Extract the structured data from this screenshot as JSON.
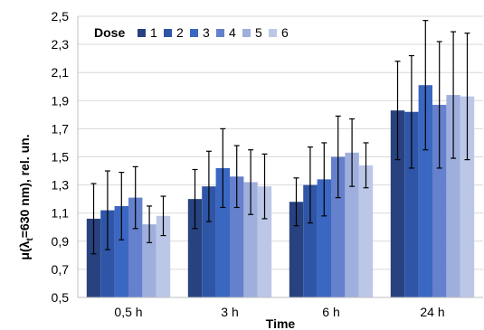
{
  "chart_data": {
    "type": "bar",
    "xlabel": "Time",
    "ylabel": "μ(λ",
    "ylabel_sub": "t",
    "ylabel_rest": "=630 nm), rel. un.",
    "ylim": [
      0.5,
      2.5
    ],
    "yticks": [
      "0,5",
      "0,7",
      "0,9",
      "1,1",
      "1,3",
      "1,5",
      "1,7",
      "1,9",
      "2,1",
      "2,3",
      "2,5"
    ],
    "ytick_values": [
      0.5,
      0.7,
      0.9,
      1.1,
      1.3,
      1.5,
      1.7,
      1.9,
      2.1,
      2.3,
      2.5
    ],
    "grid": true,
    "legend": {
      "title": "Dose",
      "placement": "top-left"
    },
    "categories": [
      "0,5 h",
      "3 h",
      "6 h",
      "24 h"
    ],
    "series": [
      {
        "name": "1",
        "color": "#27427f",
        "values": [
          1.06,
          1.2,
          1.18,
          1.83
        ],
        "err": [
          0.25,
          0.21,
          0.17,
          0.35
        ]
      },
      {
        "name": "2",
        "color": "#2f55a6",
        "values": [
          1.12,
          1.29,
          1.3,
          1.82
        ],
        "err": [
          0.28,
          0.25,
          0.27,
          0.4
        ]
      },
      {
        "name": "3",
        "color": "#3a67c2",
        "values": [
          1.15,
          1.42,
          1.34,
          2.01
        ],
        "err": [
          0.24,
          0.28,
          0.26,
          0.46
        ]
      },
      {
        "name": "4",
        "color": "#6580cc",
        "values": [
          1.21,
          1.36,
          1.5,
          1.87
        ],
        "err": [
          0.22,
          0.22,
          0.29,
          0.45
        ]
      },
      {
        "name": "5",
        "color": "#9fafdd",
        "values": [
          1.02,
          1.32,
          1.53,
          1.94
        ],
        "err": [
          0.13,
          0.23,
          0.24,
          0.45
        ]
      },
      {
        "name": "6",
        "color": "#bcc7e8",
        "values": [
          1.08,
          1.29,
          1.44,
          1.93
        ],
        "err": [
          0.14,
          0.23,
          0.16,
          0.45
        ]
      }
    ]
  }
}
